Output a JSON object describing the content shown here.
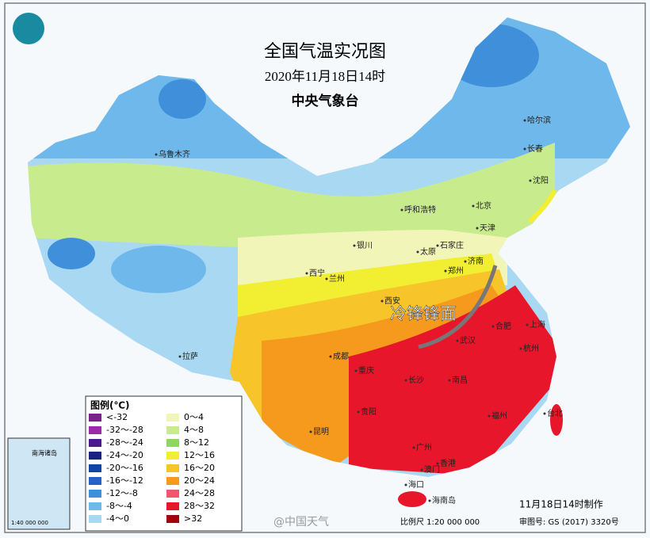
{
  "header": {
    "title": "全国气温实况图",
    "date": "2020年11月18日14时",
    "agency": "中央气象台"
  },
  "annotation": "冷锋锋面",
  "legend": {
    "title": "图例(℃)",
    "items": [
      {
        "label": "<-32",
        "color": "#7a1f8c"
      },
      {
        "label": "-32～-28",
        "color": "#9a2ca8"
      },
      {
        "label": "-28～-24",
        "color": "#4b1a8a"
      },
      {
        "label": "-24～-20",
        "color": "#1a237e"
      },
      {
        "label": "-20～-16",
        "color": "#0d47a1"
      },
      {
        "label": "-16～-12",
        "color": "#2363c4"
      },
      {
        "label": "-12～-8",
        "color": "#3f8fdb"
      },
      {
        "label": "-8～-4",
        "color": "#6fb8ec"
      },
      {
        "label": "-4～0",
        "color": "#a9d9f2"
      },
      {
        "label": "0～4",
        "color": "#f2f5b8"
      },
      {
        "label": "4～8",
        "color": "#c8eb8e"
      },
      {
        "label": "8～12",
        "color": "#8fd660"
      },
      {
        "label": "12～16",
        "color": "#f2ee32"
      },
      {
        "label": "16～20",
        "color": "#f7c52a"
      },
      {
        "label": "20～24",
        "color": "#f59a1c"
      },
      {
        "label": "24～28",
        "color": "#f0566e"
      },
      {
        "label": "28～32",
        "color": "#e8162a"
      },
      {
        "label": ">32",
        "color": "#a3000f"
      }
    ]
  },
  "cities": [
    "乌鲁木齐",
    "哈尔滨",
    "长春",
    "沈阳",
    "呼和浩特",
    "北京",
    "天津",
    "石家庄",
    "太原",
    "银川",
    "济南",
    "西宁",
    "兰州",
    "郑州",
    "西安",
    "合肥",
    "武汉",
    "成都",
    "重庆",
    "拉萨",
    "贵阳",
    "昆明",
    "长沙",
    "南昌",
    "杭州",
    "上海",
    "福州",
    "台北",
    "广州",
    "香港",
    "澳门",
    "海口",
    "海南岛"
  ],
  "inset": {
    "title": "南海诸岛",
    "scale": "1:40 000 000"
  },
  "footer": {
    "made": "11月18日14时制作",
    "scale": "比例尺 1:20 000 000",
    "approval": "审图号: GS (2017) 3320号",
    "watermark": "@中国天气"
  }
}
